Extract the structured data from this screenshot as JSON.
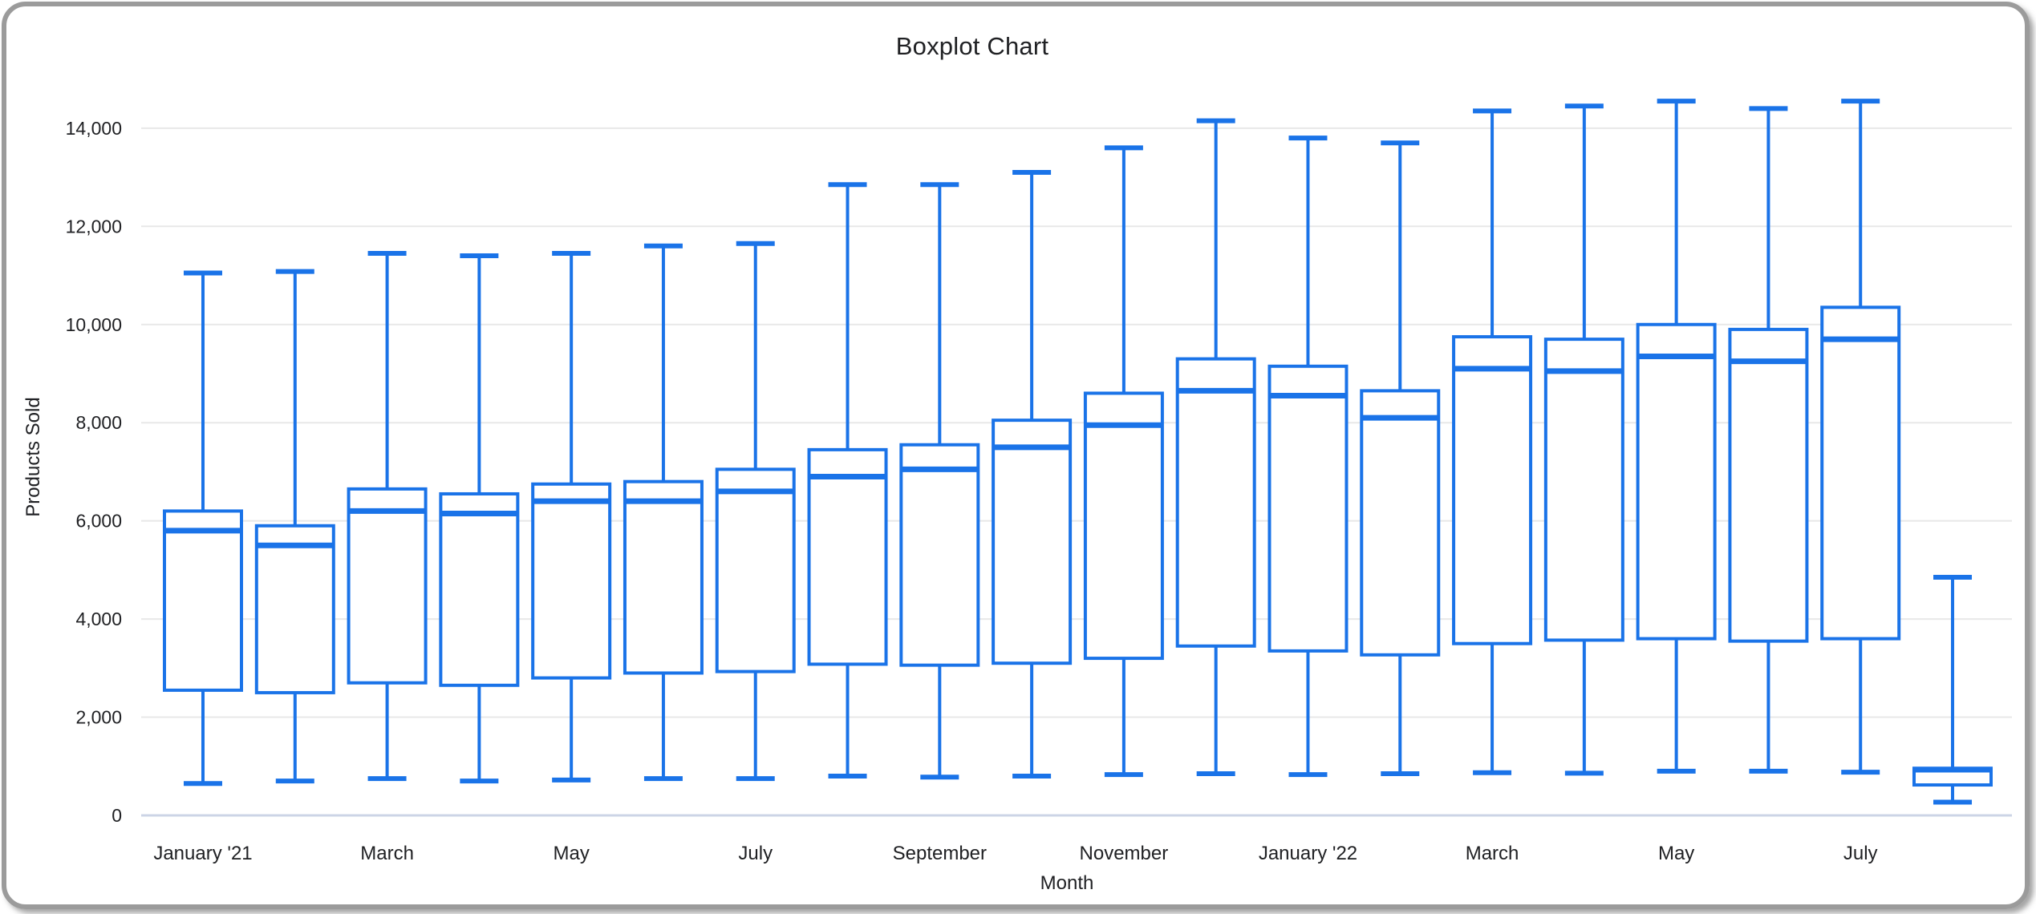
{
  "window": {
    "background": "#ffffff",
    "frame_border_color": "#9b9b9b"
  },
  "chart_data": {
    "type": "boxplot",
    "title": "Boxplot Chart",
    "xlabel": "Month",
    "ylabel": "Products Sold",
    "ylim": [
      0,
      14800
    ],
    "grid": true,
    "y_ticks": [
      {
        "value": 0,
        "label": "0"
      },
      {
        "value": 2000,
        "label": "2,000"
      },
      {
        "value": 4000,
        "label": "4,000"
      },
      {
        "value": 6000,
        "label": "6,000"
      },
      {
        "value": 8000,
        "label": "8,000"
      },
      {
        "value": 10000,
        "label": "10,000"
      },
      {
        "value": 12000,
        "label": "12,000"
      },
      {
        "value": 14000,
        "label": "14,000"
      }
    ],
    "x_axis_labels": [
      {
        "index": 0,
        "label": "January '21"
      },
      {
        "index": 2,
        "label": "March"
      },
      {
        "index": 4,
        "label": "May"
      },
      {
        "index": 6,
        "label": "July"
      },
      {
        "index": 8,
        "label": "September"
      },
      {
        "index": 10,
        "label": "November"
      },
      {
        "index": 12,
        "label": "January '22"
      },
      {
        "index": 14,
        "label": "March"
      },
      {
        "index": 16,
        "label": "May"
      },
      {
        "index": 18,
        "label": "July"
      }
    ],
    "boxes": [
      {
        "min": 650,
        "q1": 2550,
        "median": 5800,
        "q3": 6200,
        "max": 11050
      },
      {
        "min": 700,
        "q1": 2500,
        "median": 5500,
        "q3": 5900,
        "max": 11080
      },
      {
        "min": 750,
        "q1": 2700,
        "median": 6200,
        "q3": 6650,
        "max": 11450
      },
      {
        "min": 700,
        "q1": 2650,
        "median": 6150,
        "q3": 6550,
        "max": 11400
      },
      {
        "min": 720,
        "q1": 2800,
        "median": 6400,
        "q3": 6750,
        "max": 11450
      },
      {
        "min": 750,
        "q1": 2900,
        "median": 6400,
        "q3": 6800,
        "max": 11600
      },
      {
        "min": 750,
        "q1": 2930,
        "median": 6600,
        "q3": 7050,
        "max": 11650
      },
      {
        "min": 800,
        "q1": 3080,
        "median": 6900,
        "q3": 7450,
        "max": 12850
      },
      {
        "min": 780,
        "q1": 3060,
        "median": 7050,
        "q3": 7550,
        "max": 12850
      },
      {
        "min": 800,
        "q1": 3100,
        "median": 7500,
        "q3": 8050,
        "max": 13100
      },
      {
        "min": 830,
        "q1": 3200,
        "median": 7950,
        "q3": 8600,
        "max": 13600
      },
      {
        "min": 850,
        "q1": 3450,
        "median": 8650,
        "q3": 9300,
        "max": 14150
      },
      {
        "min": 830,
        "q1": 3350,
        "median": 8550,
        "q3": 9150,
        "max": 13800
      },
      {
        "min": 850,
        "q1": 3270,
        "median": 8100,
        "q3": 8650,
        "max": 13700
      },
      {
        "min": 870,
        "q1": 3500,
        "median": 9100,
        "q3": 9750,
        "max": 14350
      },
      {
        "min": 860,
        "q1": 3570,
        "median": 9050,
        "q3": 9700,
        "max": 14450
      },
      {
        "min": 900,
        "q1": 3600,
        "median": 9350,
        "q3": 10000,
        "max": 14550
      },
      {
        "min": 900,
        "q1": 3550,
        "median": 9250,
        "q3": 9900,
        "max": 14400
      },
      {
        "min": 880,
        "q1": 3600,
        "median": 9700,
        "q3": 10350,
        "max": 14550
      },
      {
        "min": 270,
        "q1": 620,
        "median": 930,
        "q3": 960,
        "max": 4850
      }
    ],
    "colors": {
      "box_stroke": "#1a73e8",
      "box_fill": "#ffffff",
      "gridline": "#e8e8e8",
      "baseline": "#ccd4e6",
      "text": "#202124"
    },
    "legend_position": "none"
  }
}
